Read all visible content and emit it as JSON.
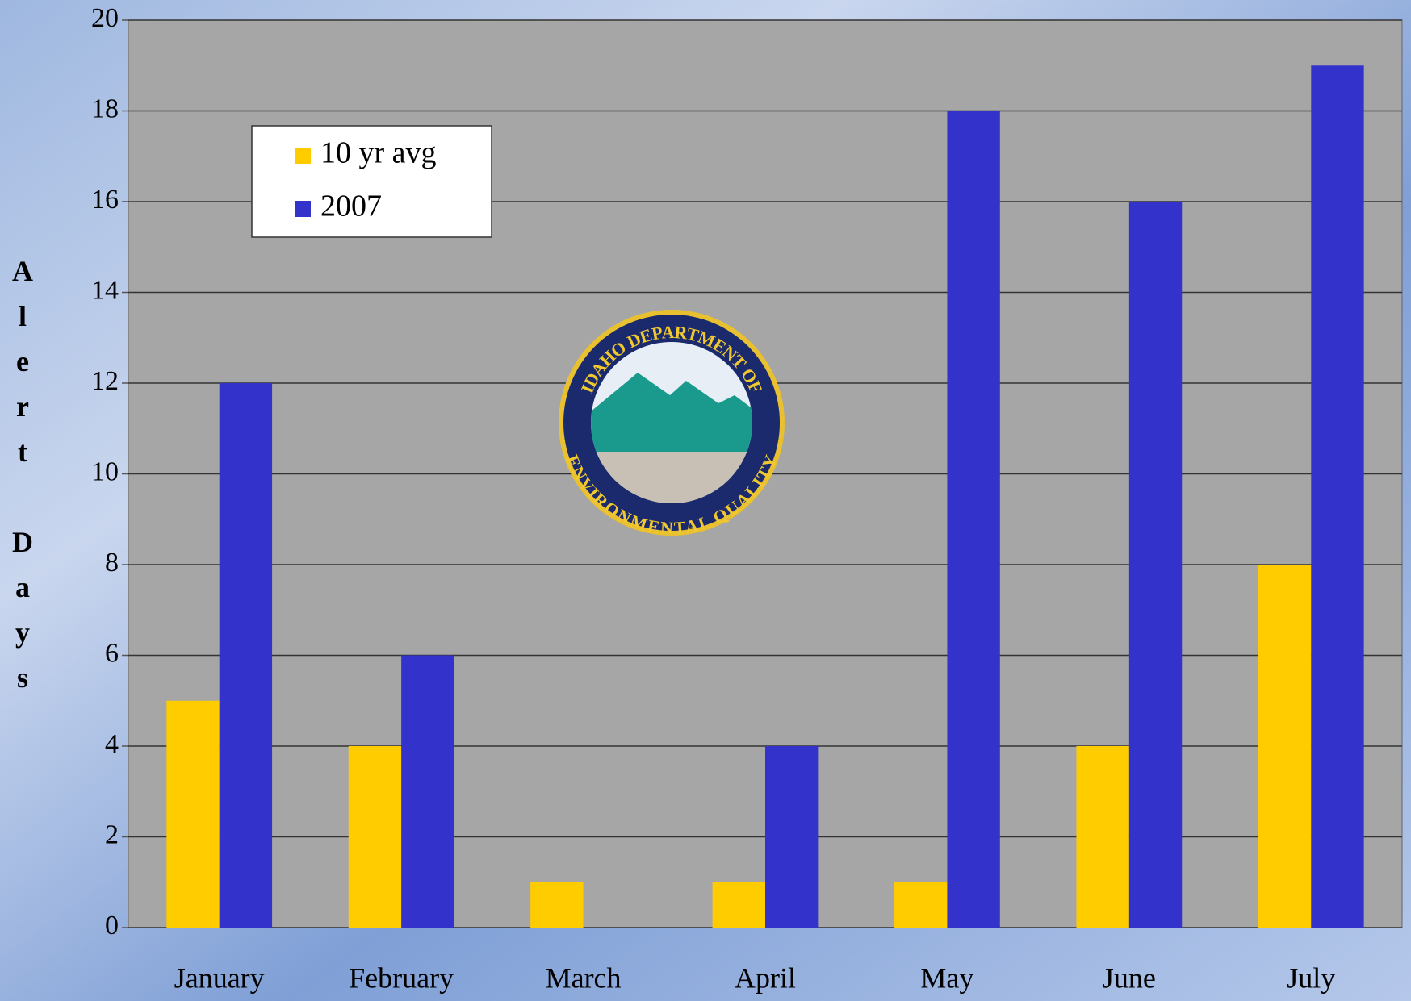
{
  "chart_data": {
    "type": "bar",
    "categories": [
      "January",
      "February",
      "March",
      "April",
      "May",
      "June",
      "July"
    ],
    "series": [
      {
        "name": "10 yr avg",
        "color": "#ffcc00",
        "values": [
          5,
          4,
          1,
          1,
          1,
          4,
          8
        ]
      },
      {
        "name": "2007",
        "color": "#3333cc",
        "values": [
          12,
          6,
          0,
          4,
          18,
          16,
          19
        ]
      }
    ],
    "ylabel": "Alert Days",
    "ylim": [
      0,
      20
    ],
    "yticks": [
      0,
      2,
      4,
      6,
      8,
      10,
      12,
      14,
      16,
      18,
      20
    ],
    "grid": true,
    "legend": "upper left",
    "logo": {
      "top_text": "IDAHO DEPARTMENT OF",
      "bottom_text": "ENVIRONMENTAL QUALITY"
    }
  }
}
